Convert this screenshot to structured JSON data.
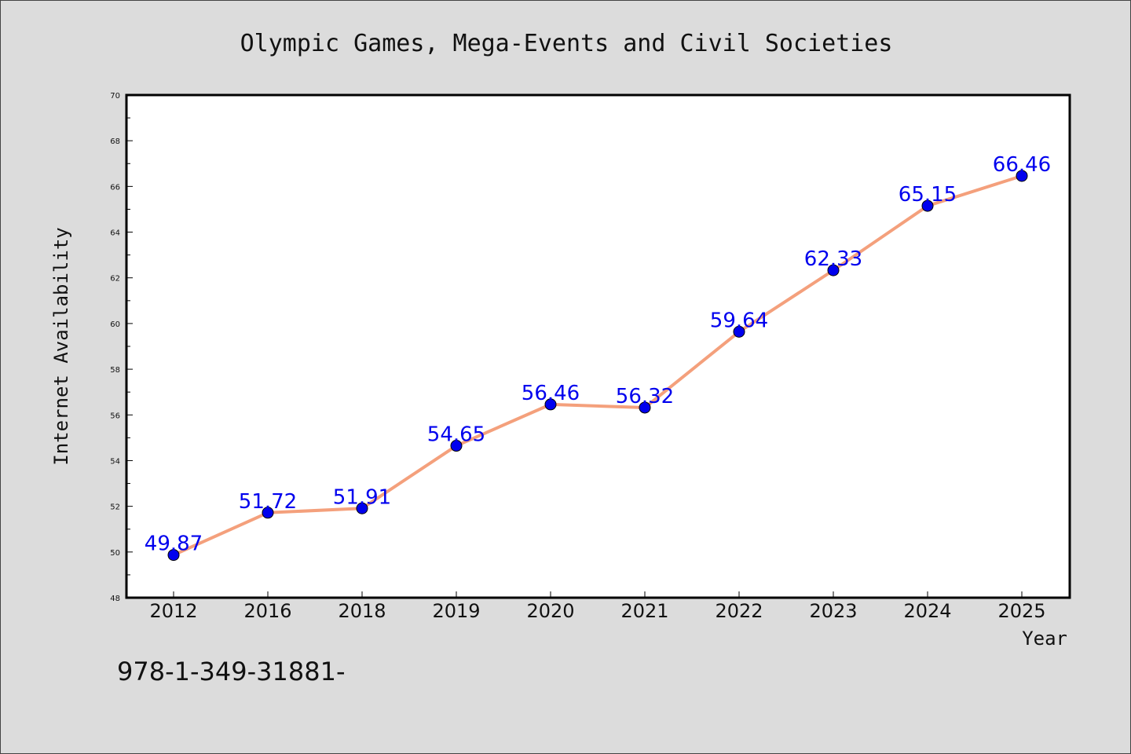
{
  "chart_data": {
    "type": "line",
    "title": "Olympic Games, Mega-Events and Civil Societies",
    "xlabel": "Year",
    "ylabel": "Internet Availability",
    "categories": [
      "2012",
      "2016",
      "2018",
      "2019",
      "2020",
      "2021",
      "2022",
      "2023",
      "2024",
      "2025"
    ],
    "series": [
      {
        "values": [
          49.87,
          51.72,
          51.91,
          54.65,
          56.46,
          56.32,
          59.64,
          62.33,
          65.15,
          66.46
        ],
        "data_labels": [
          "49.87",
          "51.72",
          "51.91",
          "54.65",
          "56.46",
          "56.32",
          "59.64",
          "62.33",
          "65.15",
          "66.46"
        ]
      }
    ],
    "ylim": [
      48,
      70
    ],
    "yticks": [
      "48",
      "50",
      "52",
      "54",
      "56",
      "58",
      "60",
      "62",
      "64",
      "66",
      "68",
      "70"
    ],
    "grid": false,
    "legend": "none",
    "colors": {
      "line": "#f4a07c",
      "marker": "#0000ee",
      "data_label": "#0000ee",
      "background": "#dcdcdc",
      "plot_background": "#ffffff"
    }
  },
  "footer": {
    "code": "978-1-349-31881-"
  }
}
